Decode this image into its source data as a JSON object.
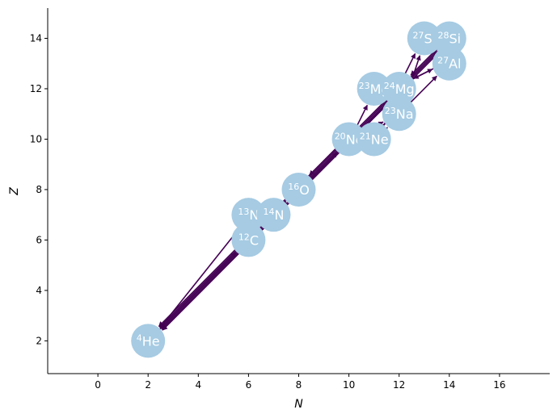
{
  "chart_data": {
    "type": "scatter",
    "xlabel": "N",
    "ylabel": "Z",
    "xlim": [
      -2,
      18
    ],
    "ylim": [
      0.7,
      15.2
    ],
    "x_ticks": [
      0,
      2,
      4,
      6,
      8,
      10,
      12,
      14,
      16
    ],
    "y_ticks": [
      2,
      4,
      6,
      8,
      10,
      12,
      14
    ],
    "grid": false,
    "spines": "left-bottom",
    "node_color": "#a6cbe3",
    "edge_color": "#440154",
    "nodes": [
      {
        "id": "he4",
        "A": "4",
        "symbol": "He",
        "N": 2,
        "Z": 2
      },
      {
        "id": "c12",
        "A": "12",
        "symbol": "C",
        "N": 6,
        "Z": 6
      },
      {
        "id": "n13",
        "A": "13",
        "symbol": "N",
        "N": 6,
        "Z": 7
      },
      {
        "id": "n14",
        "A": "14",
        "symbol": "N",
        "N": 7,
        "Z": 7
      },
      {
        "id": "o16",
        "A": "16",
        "symbol": "O",
        "N": 8,
        "Z": 8
      },
      {
        "id": "ne20",
        "A": "20",
        "symbol": "Ne",
        "N": 10,
        "Z": 10
      },
      {
        "id": "ne21",
        "A": "21",
        "symbol": "Ne",
        "N": 11,
        "Z": 10
      },
      {
        "id": "na23",
        "A": "23",
        "symbol": "Na",
        "N": 12,
        "Z": 11
      },
      {
        "id": "mg23",
        "A": "23",
        "symbol": "Mg",
        "N": 11,
        "Z": 12
      },
      {
        "id": "mg24",
        "A": "24",
        "symbol": "Mg",
        "N": 12,
        "Z": 12
      },
      {
        "id": "al27",
        "A": "27",
        "symbol": "Al",
        "N": 14,
        "Z": 13
      },
      {
        "id": "si27",
        "A": "27",
        "symbol": "Si",
        "N": 13,
        "Z": 14
      },
      {
        "id": "si28",
        "A": "28",
        "symbol": "Si",
        "N": 14,
        "Z": 14
      }
    ],
    "edges": [
      {
        "from": "c12",
        "to": "he4"
      },
      {
        "from": "n13",
        "to": "he4"
      },
      {
        "from": "n14",
        "to": "he4"
      },
      {
        "from": "o16",
        "to": "he4"
      },
      {
        "from": "ne20",
        "to": "he4"
      },
      {
        "from": "mg24",
        "to": "he4"
      },
      {
        "from": "si28",
        "to": "he4"
      },
      {
        "from": "he4",
        "to": "c12"
      },
      {
        "from": "c12",
        "to": "n13"
      },
      {
        "from": "n13",
        "to": "c12"
      },
      {
        "from": "n14",
        "to": "c12"
      },
      {
        "from": "c12",
        "to": "o16"
      },
      {
        "from": "n14",
        "to": "o16"
      },
      {
        "from": "o16",
        "to": "ne20"
      },
      {
        "from": "ne20",
        "to": "o16"
      },
      {
        "from": "ne20",
        "to": "ne21"
      },
      {
        "from": "ne21",
        "to": "ne20"
      },
      {
        "from": "ne20",
        "to": "na23"
      },
      {
        "from": "ne20",
        "to": "mg23"
      },
      {
        "from": "ne20",
        "to": "mg24"
      },
      {
        "from": "mg24",
        "to": "ne20"
      },
      {
        "from": "o16",
        "to": "mg24"
      },
      {
        "from": "o16",
        "to": "si28"
      },
      {
        "from": "ne21",
        "to": "na23"
      },
      {
        "from": "ne21",
        "to": "mg24"
      },
      {
        "from": "na23",
        "to": "ne20"
      },
      {
        "from": "na23",
        "to": "mg24"
      },
      {
        "from": "mg23",
        "to": "na23"
      },
      {
        "from": "mg23",
        "to": "mg24"
      },
      {
        "from": "mg24",
        "to": "si28"
      },
      {
        "from": "mg24",
        "to": "al27"
      },
      {
        "from": "mg24",
        "to": "si27"
      },
      {
        "from": "na23",
        "to": "al27"
      },
      {
        "from": "na23",
        "to": "si27"
      },
      {
        "from": "al27",
        "to": "mg24"
      },
      {
        "from": "al27",
        "to": "si28"
      },
      {
        "from": "si28",
        "to": "al27"
      },
      {
        "from": "si27",
        "to": "al27"
      },
      {
        "from": "si28",
        "to": "mg24"
      }
    ]
  }
}
